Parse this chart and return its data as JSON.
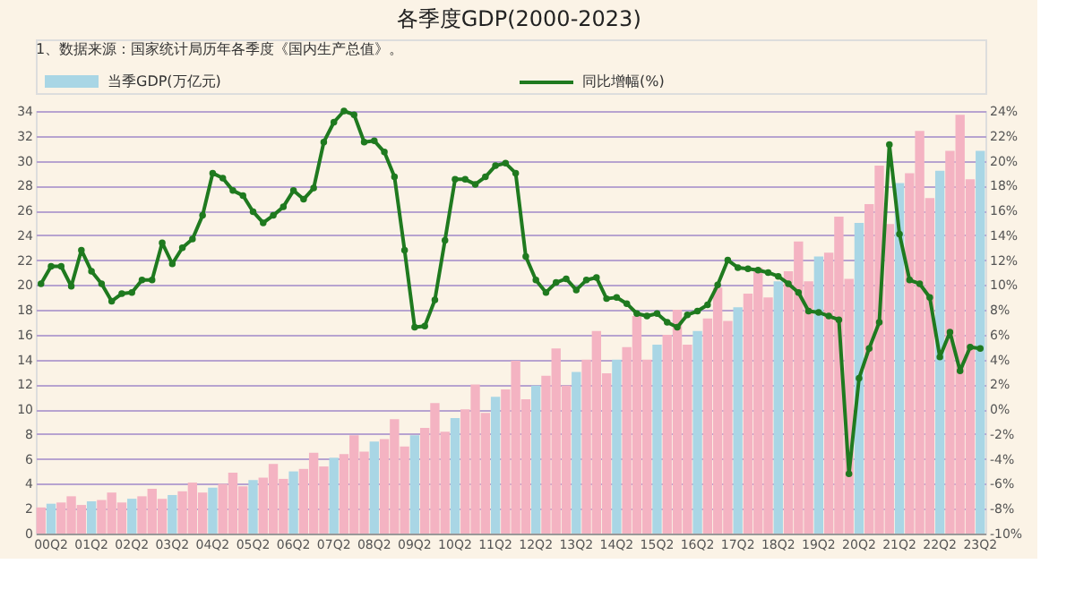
{
  "chart_data": {
    "type": "bar",
    "title": "各季度GDP(2000-2023)",
    "annotations": [
      "1、数据来源：国家统计局历年各季度《国内生产总值》。"
    ],
    "categories": [
      null,
      "00Q2",
      null,
      null,
      null,
      "01Q2",
      null,
      null,
      null,
      "02Q2",
      null,
      null,
      null,
      "03Q2",
      null,
      null,
      null,
      "04Q2",
      null,
      null,
      null,
      "05Q2",
      null,
      null,
      null,
      "06Q2",
      null,
      null,
      null,
      "07Q2",
      null,
      null,
      null,
      "08Q2",
      null,
      null,
      null,
      "09Q2",
      null,
      null,
      null,
      "10Q2",
      null,
      null,
      null,
      "11Q2",
      null,
      null,
      null,
      "12Q2",
      null,
      null,
      null,
      "13Q2",
      null,
      null,
      null,
      "14Q2",
      null,
      null,
      null,
      "15Q2",
      null,
      null,
      null,
      "16Q2",
      null,
      null,
      null,
      "17Q2",
      null,
      null,
      null,
      "18Q2",
      null,
      null,
      null,
      "19Q2",
      null,
      null,
      null,
      "20Q2",
      null,
      null,
      null,
      "21Q2",
      null,
      null,
      null,
      "22Q2",
      null,
      null,
      null,
      "23Q2"
    ],
    "series": [
      {
        "name": "当季GDP(万亿元)",
        "color": "#a9d6e5",
        "colors": [
          "#f4b3c2",
          "#a9d6e5",
          "#f4b3c2",
          "#f4b3c2",
          "#f4b3c2",
          "#a9d6e5",
          "#f4b3c2",
          "#f4b3c2",
          "#f4b3c2",
          "#a9d6e5",
          "#f4b3c2",
          "#f4b3c2",
          "#f4b3c2",
          "#a9d6e5",
          "#f4b3c2",
          "#f4b3c2",
          "#f4b3c2",
          "#a9d6e5",
          "#f4b3c2",
          "#f4b3c2",
          "#f4b3c2",
          "#a9d6e5",
          "#f4b3c2",
          "#f4b3c2",
          "#f4b3c2",
          "#a9d6e5",
          "#f4b3c2",
          "#f4b3c2",
          "#f4b3c2",
          "#a9d6e5",
          "#f4b3c2",
          "#f4b3c2",
          "#f4b3c2",
          "#a9d6e5",
          "#f4b3c2",
          "#f4b3c2",
          "#f4b3c2",
          "#a9d6e5",
          "#f4b3c2",
          "#f4b3c2",
          "#f4b3c2",
          "#a9d6e5",
          "#f4b3c2",
          "#f4b3c2",
          "#f4b3c2",
          "#a9d6e5",
          "#f4b3c2",
          "#f4b3c2",
          "#f4b3c2",
          "#a9d6e5",
          "#f4b3c2",
          "#f4b3c2",
          "#f4b3c2",
          "#a9d6e5",
          "#f4b3c2",
          "#f4b3c2",
          "#f4b3c2",
          "#a9d6e5",
          "#f4b3c2",
          "#f4b3c2",
          "#f4b3c2",
          "#a9d6e5",
          "#f4b3c2",
          "#f4b3c2",
          "#f4b3c2",
          "#a9d6e5",
          "#f4b3c2",
          "#f4b3c2",
          "#f4b3c2",
          "#a9d6e5",
          "#f4b3c2",
          "#f4b3c2",
          "#f4b3c2",
          "#a9d6e5",
          "#f4b3c2",
          "#f4b3c2",
          "#f4b3c2",
          "#a9d6e5",
          "#f4b3c2",
          "#f4b3c2",
          "#f4b3c2",
          "#a9d6e5",
          "#f4b3c2",
          "#f4b3c2",
          "#f4b3c2",
          "#a9d6e5",
          "#f4b3c2",
          "#f4b3c2",
          "#f4b3c2",
          "#a9d6e5",
          "#f4b3c2",
          "#f4b3c2",
          "#f4b3c2",
          "#a9d6e5"
        ],
        "values": [
          2.1,
          2.4,
          2.5,
          3.0,
          2.3,
          2.6,
          2.7,
          3.3,
          2.5,
          2.8,
          3.0,
          3.6,
          2.8,
          3.1,
          3.4,
          4.1,
          3.3,
          3.7,
          4.0,
          4.9,
          3.8,
          4.3,
          4.5,
          5.6,
          4.4,
          5.0,
          5.2,
          6.5,
          5.4,
          6.1,
          6.4,
          7.9,
          6.6,
          7.4,
          7.6,
          9.2,
          7.0,
          7.9,
          8.5,
          10.5,
          8.2,
          9.3,
          10.0,
          12.0,
          9.7,
          11.0,
          11.6,
          13.9,
          10.8,
          11.9,
          12.7,
          14.9,
          11.9,
          13.0,
          14.0,
          16.3,
          12.9,
          14.0,
          15.0,
          17.5,
          14.0,
          15.2,
          16.0,
          18.0,
          15.2,
          16.3,
          17.3,
          19.8,
          17.1,
          18.2,
          19.3,
          21.4,
          19.0,
          20.3,
          21.1,
          23.5,
          20.3,
          22.3,
          22.6,
          25.5,
          20.5,
          25.0,
          26.5,
          29.6,
          24.9,
          28.2,
          29.0,
          32.4,
          27.0,
          29.2,
          30.8,
          33.7,
          28.5,
          30.8
        ]
      },
      {
        "name": "同比增幅(%)",
        "type": "line",
        "axis": "y2",
        "color": "#1f7a1f",
        "values": [
          10.1,
          11.5,
          11.5,
          9.9,
          12.8,
          11.1,
          10.1,
          8.7,
          9.3,
          9.4,
          10.4,
          10.4,
          13.4,
          11.7,
          13.0,
          13.7,
          15.6,
          19.0,
          18.6,
          17.6,
          17.2,
          15.9,
          15.0,
          15.6,
          16.3,
          17.6,
          16.9,
          17.8,
          21.5,
          23.1,
          24.0,
          23.7,
          21.5,
          21.6,
          20.7,
          18.7,
          12.8,
          6.6,
          6.7,
          8.8,
          13.6,
          18.5,
          18.5,
          18.1,
          18.7,
          19.6,
          19.8,
          19.0,
          12.3,
          10.4,
          9.4,
          10.2,
          10.5,
          9.6,
          10.4,
          10.6,
          8.9,
          9.0,
          8.5,
          7.7,
          7.5,
          7.7,
          7.0,
          6.6,
          7.6,
          7.9,
          8.4,
          10.0,
          12.0,
          11.4,
          11.3,
          11.2,
          11.0,
          10.7,
          10.1,
          9.4,
          7.9,
          7.8,
          7.5,
          7.2,
          -5.2,
          2.5,
          4.9,
          7.0,
          21.3,
          14.1,
          10.4,
          10.1,
          9.0,
          4.2,
          6.2,
          3.1,
          5.0,
          4.9
        ]
      }
    ],
    "ylim": [
      0,
      34
    ],
    "yticks": [
      0,
      2,
      4,
      6,
      8,
      10,
      12,
      14,
      16,
      18,
      20,
      22,
      24,
      26,
      28,
      30,
      32,
      34
    ],
    "y2lim": [
      -10,
      24
    ],
    "y2ticks": [
      {
        "value": -10,
        "label": "-10%"
      },
      {
        "value": -8,
        "label": "-8%"
      },
      {
        "value": -6,
        "label": "-6%"
      },
      {
        "value": -4,
        "label": "-4%"
      },
      {
        "value": -2,
        "label": "-2%"
      },
      {
        "value": 0,
        "label": "0%"
      },
      {
        "value": 2,
        "label": "2%"
      },
      {
        "value": 4,
        "label": "4%"
      },
      {
        "value": 6,
        "label": "6%"
      },
      {
        "value": 8,
        "label": "8%"
      },
      {
        "value": 10,
        "label": "10%"
      },
      {
        "value": 12,
        "label": "12%"
      },
      {
        "value": 14,
        "label": "14%"
      },
      {
        "value": 16,
        "label": "16%"
      },
      {
        "value": 18,
        "label": "18%"
      },
      {
        "value": 20,
        "label": "20%"
      },
      {
        "value": 22,
        "label": "22%"
      },
      {
        "value": 24,
        "label": "24%"
      }
    ],
    "grid": "y",
    "legend": "top",
    "marker": "circle",
    "line_style": "solid"
  }
}
